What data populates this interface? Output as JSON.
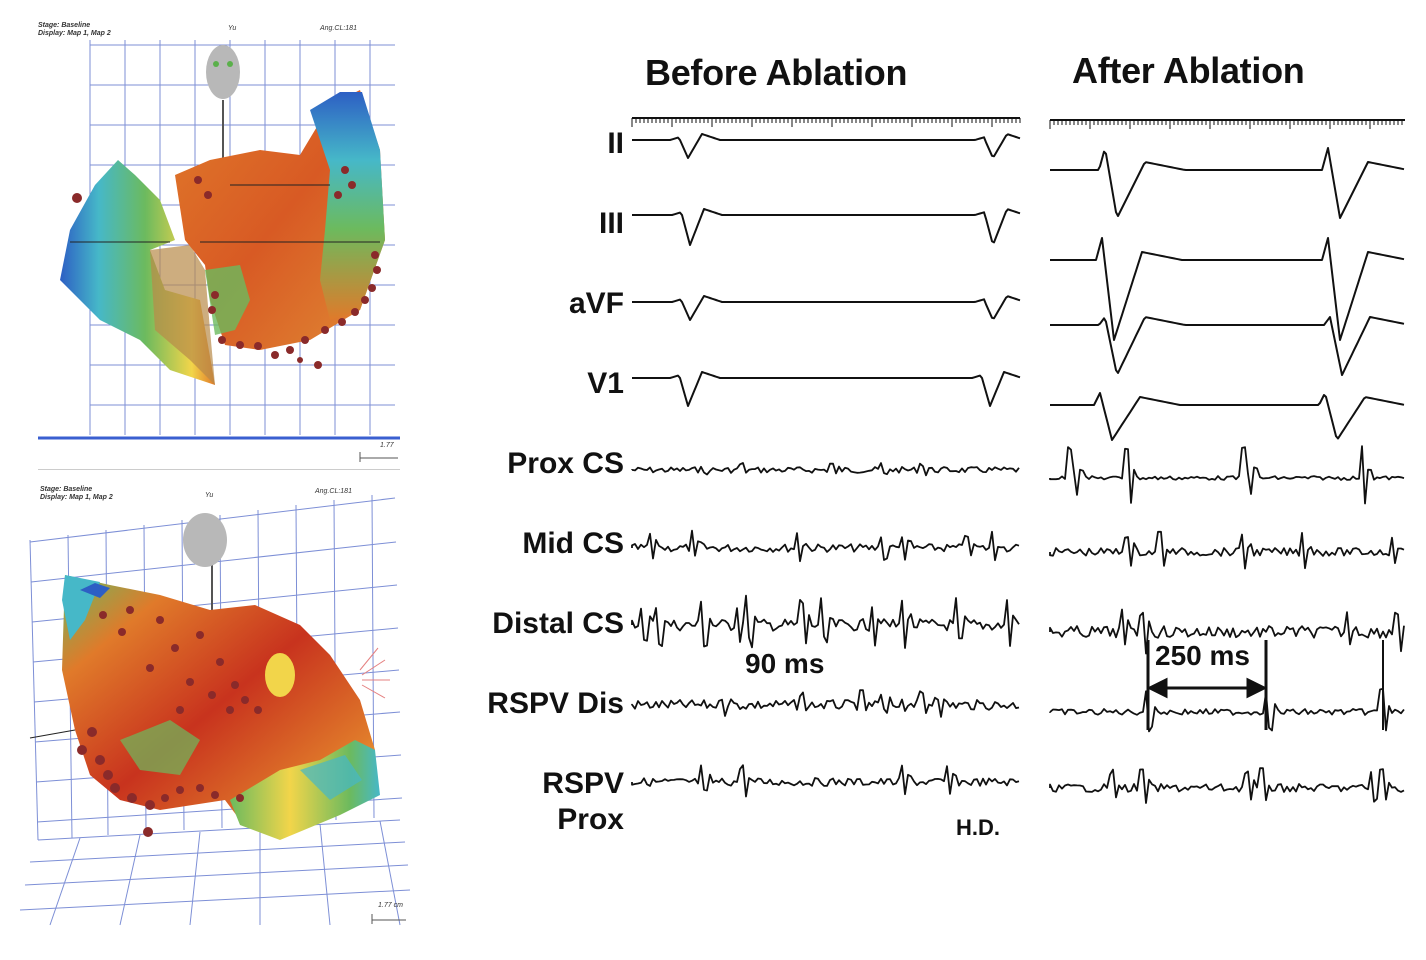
{
  "maps": {
    "top": {
      "header_line1": "Stage: Baseline",
      "header_line2": "Display: Map 1, Map 2",
      "center_mark": "Yu",
      "right_mark": "Ang.CL:181",
      "scale_label": "1.77"
    },
    "bottom": {
      "header_line1": "Stage: Baseline",
      "header_line2": "Display: Map 1, Map 2",
      "center_mark": "Yu",
      "right_mark": "Ang.CL:181",
      "scale_label": "1.77 cm"
    }
  },
  "headings": {
    "before": "Before Ablation",
    "after": "After Ablation"
  },
  "leads": [
    {
      "label": "II"
    },
    {
      "label": "III"
    },
    {
      "label": "aVF"
    },
    {
      "label": "V1"
    },
    {
      "label": "Prox CS"
    },
    {
      "label": "Mid CS"
    },
    {
      "label": "Distal CS"
    },
    {
      "label": "RSPV Dis"
    },
    {
      "label": "RSPV\nProx"
    }
  ],
  "annotations": {
    "before_interval": "90 ms",
    "after_interval": "250 ms",
    "initials": "H.D."
  },
  "colors": {
    "trace": "#111111",
    "map_red": "#c8331e",
    "map_orange": "#e07a2a",
    "map_yellow": "#f2d54a",
    "map_green": "#6cba5e",
    "map_cyan": "#46b8c8",
    "map_blue": "#2d5fc4",
    "grid": "#7d8fd6",
    "lesion_dot": "#8a2a2a"
  }
}
